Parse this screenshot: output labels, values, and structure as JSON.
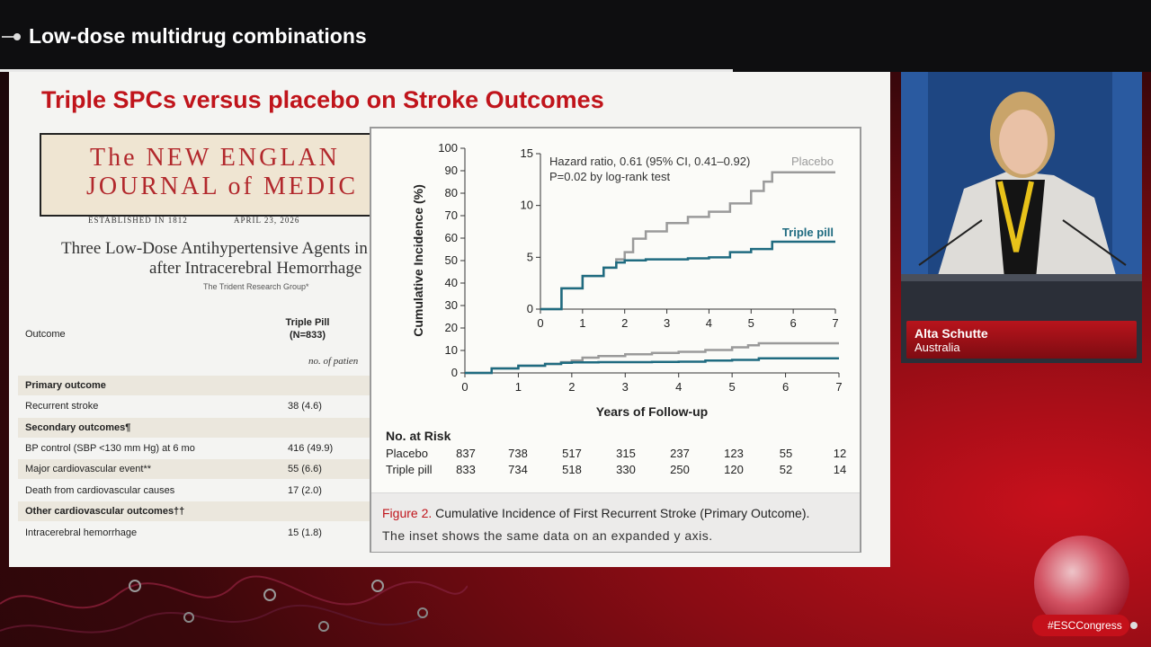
{
  "session": {
    "title": "Low-dose multidrug combinations"
  },
  "slide": {
    "title": "Triple SPCs versus placebo on Stroke Outcomes",
    "journal": {
      "line1": "The NEW ENGLAN",
      "line2": "JOURNAL of MEDIC",
      "established": "ESTABLISHED IN 1812",
      "date": "APRIL 23, 2026"
    },
    "article": {
      "title_line1": "Three Low-Dose Antihypertensive Agents in",
      "title_line2": "after Intracerebral Hemorrhage",
      "authors": "The Trident Research Group*"
    },
    "table": {
      "col_outcome": "Outcome",
      "col_pill_line1": "Triple Pill",
      "col_pill_line2": "(N=833)",
      "units": "no. of patien",
      "rows": [
        {
          "label": "Primary outcome",
          "value": "",
          "type": "section"
        },
        {
          "label": "Recurrent stroke",
          "value": "38 (4.6)",
          "type": "row"
        },
        {
          "label": "Secondary outcomes¶",
          "value": "",
          "type": "section"
        },
        {
          "label": "BP control (SBP <130 mm Hg) at 6 mo",
          "value": "416 (49.9)",
          "type": "row"
        },
        {
          "label": "Major cardiovascular event**",
          "value": "55 (6.6)",
          "type": "row"
        },
        {
          "label": "Death from cardiovascular causes",
          "value": "17 (2.0)",
          "type": "row"
        },
        {
          "label": "Other cardiovascular outcomes††",
          "value": "",
          "type": "section"
        },
        {
          "label": "Intracerebral hemorrhage",
          "value": "15 (1.8)",
          "type": "row"
        }
      ]
    }
  },
  "figure": {
    "caption_label": "Figure 2.",
    "caption_title": "Cumulative Incidence of First Recurrent Stroke (Primary Outcome).",
    "caption_body": "The inset shows the same data on an expanded y axis.",
    "hazard_text_line1": "Hazard ratio, 0.61 (95% CI, 0.41–0.92)",
    "hazard_text_line2": "P=0.02 by log-rank test",
    "risk_header": "No. at Risk",
    "risk_rows": [
      {
        "label": "Placebo",
        "values": [
          "837",
          "738",
          "517",
          "315",
          "237",
          "123",
          "55",
          "12"
        ]
      },
      {
        "label": "Triple pill",
        "values": [
          "833",
          "734",
          "518",
          "330",
          "250",
          "120",
          "52",
          "14"
        ]
      }
    ],
    "colors": {
      "placebo": "#9a9a9a",
      "triple": "#1f6b80",
      "axis": "#333333"
    }
  },
  "chart_data": {
    "type": "line",
    "xlabel": "Years of Follow-up",
    "ylabel": "Cumulative Incidence (%)",
    "xlim": [
      0,
      7
    ],
    "ylim": [
      0,
      100
    ],
    "x_ticks": [
      "0",
      "1",
      "2",
      "3",
      "4",
      "5",
      "6",
      "7"
    ],
    "y_ticks": [
      "0",
      "10",
      "20",
      "30",
      "40",
      "50",
      "60",
      "70",
      "80",
      "90",
      "100"
    ],
    "inset": {
      "xlim": [
        0,
        7
      ],
      "ylim": [
        0,
        15
      ],
      "y_ticks": [
        "0",
        "5",
        "10",
        "15"
      ],
      "x_ticks": [
        "0",
        "1",
        "2",
        "3",
        "4",
        "5",
        "6",
        "7"
      ]
    },
    "series": [
      {
        "name": "Placebo",
        "x": [
          0,
          0.5,
          1,
          1.5,
          1.8,
          2,
          2.2,
          2.5,
          3,
          3.5,
          4,
          4.5,
          5,
          5.3,
          5.5,
          6,
          7
        ],
        "y": [
          0,
          2.0,
          3.2,
          4.0,
          4.8,
          5.5,
          6.8,
          7.5,
          8.3,
          8.9,
          9.4,
          10.2,
          11.4,
          12.3,
          13.2,
          13.2,
          13.2
        ]
      },
      {
        "name": "Triple pill",
        "x": [
          0,
          0.5,
          1,
          1.5,
          1.8,
          2,
          2.5,
          3,
          3.5,
          4,
          4.5,
          5,
          5.3,
          5.5,
          6,
          7
        ],
        "y": [
          0,
          2.0,
          3.2,
          4.0,
          4.5,
          4.7,
          4.8,
          4.8,
          4.9,
          5.0,
          5.5,
          5.8,
          5.8,
          6.5,
          6.5,
          6.5
        ]
      }
    ]
  },
  "speaker": {
    "name": "Alta Schutte",
    "country": "Australia"
  },
  "hashtag": "#ESCCongress"
}
